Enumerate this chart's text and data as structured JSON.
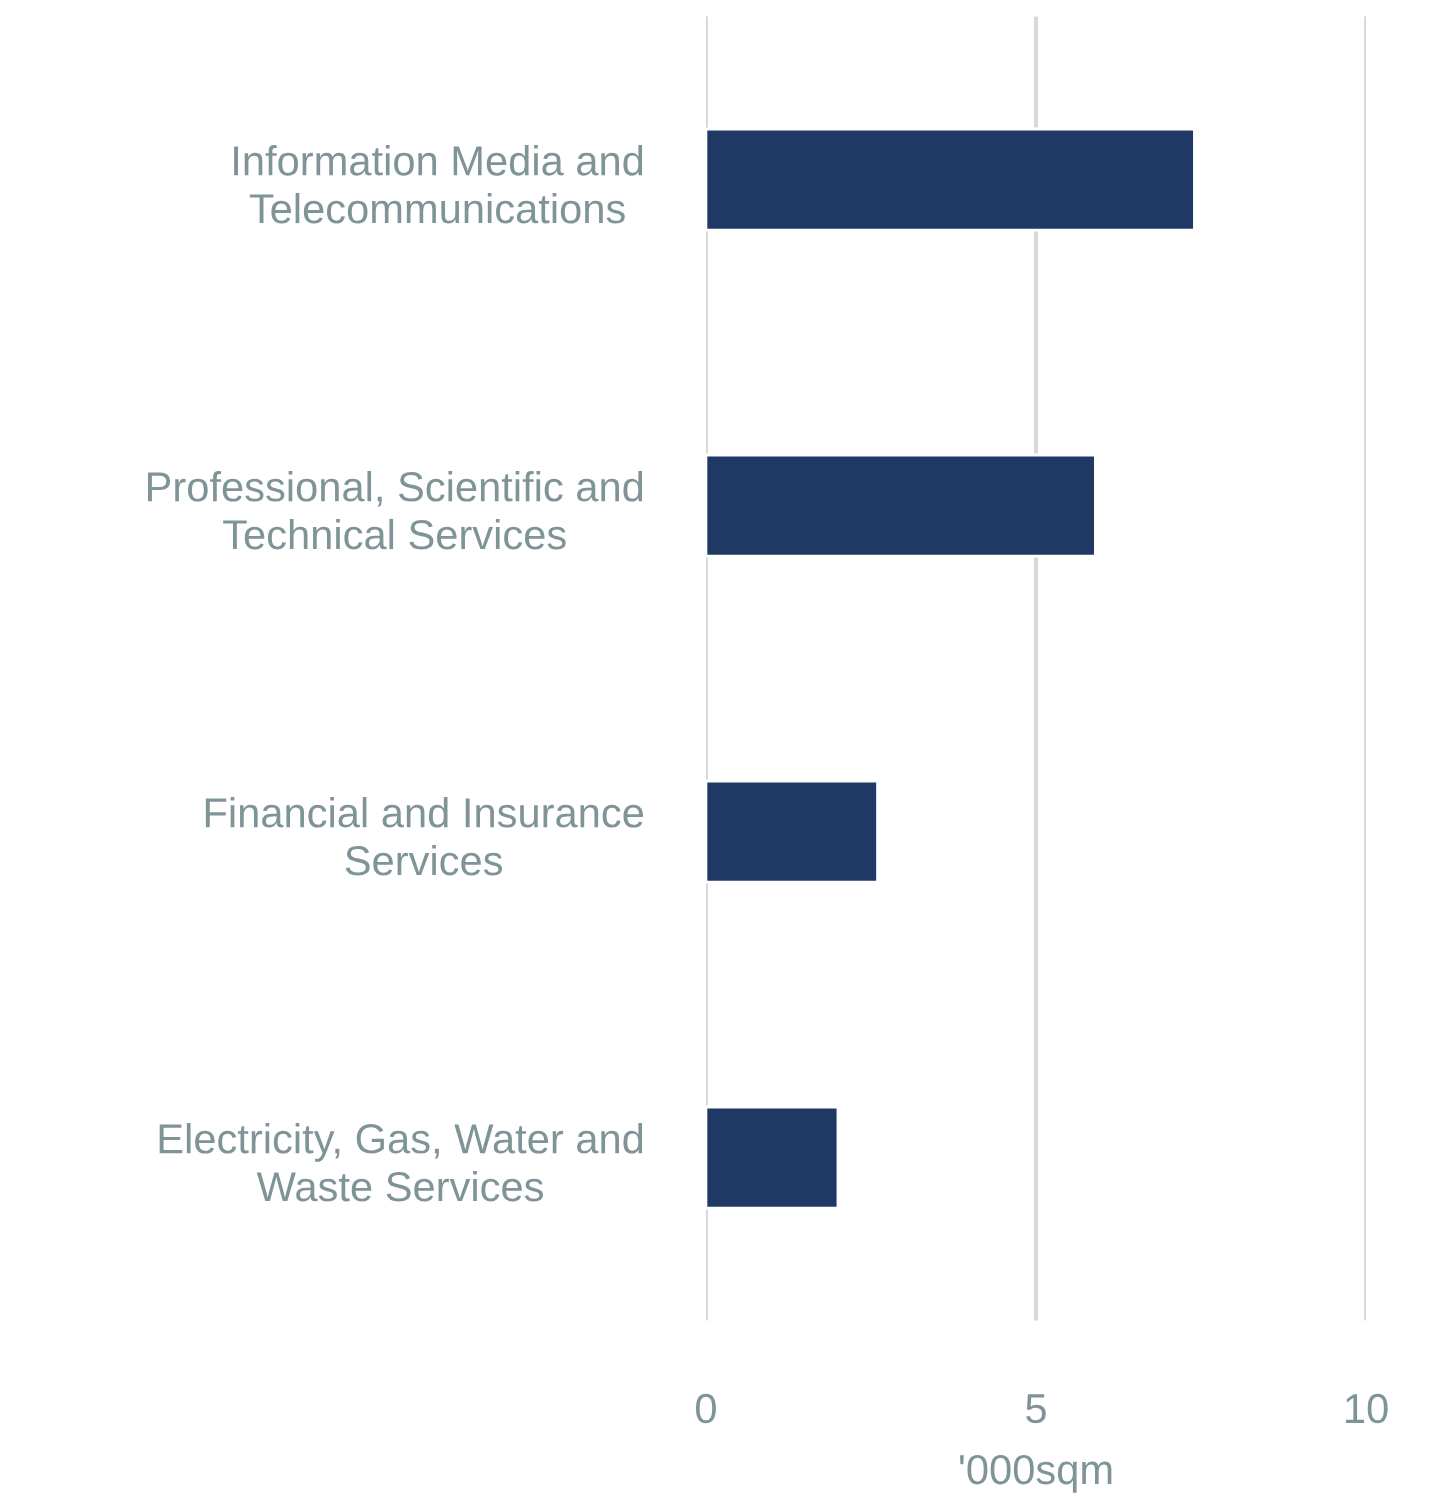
{
  "chart_data": {
    "type": "bar",
    "orientation": "horizontal",
    "categories": [
      "Information Media and\nTelecommunications",
      "Professional, Scientific and\nTechnical Services",
      "Financial and Insurance\nServices",
      "Electricity, Gas, Water and\nWaste Services"
    ],
    "values": [
      7.4,
      5.9,
      2.6,
      2.0
    ],
    "color": "#1f3864",
    "xlabel": "'000sqm",
    "xlim": [
      0,
      10
    ],
    "xticks": [
      0,
      5,
      10
    ],
    "grid": "x"
  }
}
